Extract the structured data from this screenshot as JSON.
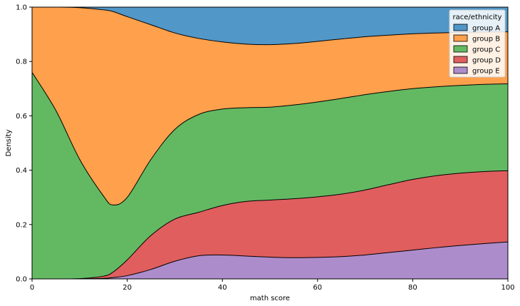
{
  "chart_data": {
    "type": "area",
    "stacked": "fill",
    "xlabel": "math score",
    "ylabel": "Density",
    "xlim": [
      0,
      100
    ],
    "ylim": [
      0,
      1
    ],
    "x_ticks": [
      0,
      20,
      40,
      60,
      80,
      100
    ],
    "y_ticks": [
      0.0,
      0.2,
      0.4,
      0.6,
      0.8,
      1.0
    ],
    "y_tick_labels": [
      "0.0",
      "0.2",
      "0.4",
      "0.6",
      "0.8",
      "1.0"
    ],
    "grid": false,
    "legend": {
      "title": "race/ethnicity",
      "placement": "top-right"
    },
    "x": [
      0,
      5,
      10,
      15,
      17,
      20,
      25,
      30,
      35,
      40,
      45,
      50,
      55,
      60,
      65,
      70,
      75,
      80,
      85,
      90,
      95,
      100
    ],
    "boundaries": {
      "E_top": [
        0.0,
        0.0,
        0.0,
        0.002,
        0.005,
        0.012,
        0.035,
        0.065,
        0.085,
        0.088,
        0.084,
        0.08,
        0.078,
        0.079,
        0.082,
        0.088,
        0.097,
        0.106,
        0.115,
        0.123,
        0.13,
        0.136
      ],
      "D_top": [
        0.0,
        0.0,
        0.001,
        0.01,
        0.025,
        0.07,
        0.16,
        0.22,
        0.245,
        0.27,
        0.285,
        0.29,
        0.295,
        0.302,
        0.312,
        0.327,
        0.347,
        0.366,
        0.38,
        0.389,
        0.395,
        0.398
      ],
      "C_top": [
        0.76,
        0.62,
        0.44,
        0.305,
        0.272,
        0.3,
        0.44,
        0.55,
        0.605,
        0.625,
        0.63,
        0.632,
        0.64,
        0.651,
        0.664,
        0.678,
        0.69,
        0.7,
        0.707,
        0.712,
        0.716,
        0.718
      ],
      "B_top": [
        1.0,
        1.0,
        0.998,
        0.99,
        0.984,
        0.965,
        0.935,
        0.905,
        0.885,
        0.872,
        0.864,
        0.862,
        0.866,
        0.874,
        0.883,
        0.891,
        0.897,
        0.902,
        0.905,
        0.907,
        0.908,
        0.909
      ]
    },
    "series": [
      {
        "name": "group A",
        "color": "#5197c7"
      },
      {
        "name": "group B",
        "color": "#ffa04c"
      },
      {
        "name": "group C",
        "color": "#63b962"
      },
      {
        "name": "group D",
        "color": "#e05e5e"
      },
      {
        "name": "group E",
        "color": "#ad8ccc"
      }
    ]
  }
}
